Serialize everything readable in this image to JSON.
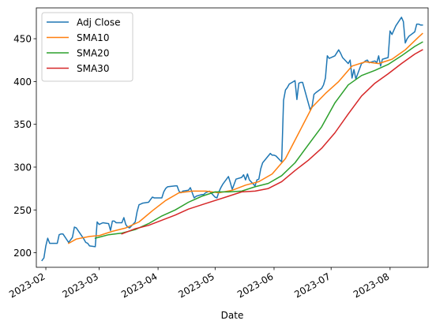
{
  "chart_data": {
    "type": "line",
    "title": "",
    "xlabel": "Date",
    "ylabel": "",
    "xlim": [
      "2023-01-27",
      "2023-08-21"
    ],
    "ylim": [
      183,
      486
    ],
    "grid": false,
    "legend_position": "top-left",
    "x_ticks": [
      {
        "date": "2023-02-01",
        "label": "2023-02"
      },
      {
        "date": "2023-03-01",
        "label": "2023-03"
      },
      {
        "date": "2023-04-01",
        "label": "2023-04"
      },
      {
        "date": "2023-05-01",
        "label": "2023-05"
      },
      {
        "date": "2023-06-01",
        "label": "2023-06"
      },
      {
        "date": "2023-07-01",
        "label": "2023-07"
      },
      {
        "date": "2023-08-01",
        "label": "2023-08"
      }
    ],
    "y_ticks": [
      200,
      250,
      300,
      350,
      400,
      450
    ],
    "series": [
      {
        "name": "Adj Close",
        "color": "#1f77b4",
        "points": [
          [
            "2023-01-30",
            191
          ],
          [
            "2023-01-31",
            194
          ],
          [
            "2023-02-01",
            208
          ],
          [
            "2023-02-02",
            217
          ],
          [
            "2023-02-03",
            211
          ],
          [
            "2023-02-06",
            211
          ],
          [
            "2023-02-07",
            211
          ],
          [
            "2023-02-08",
            221
          ],
          [
            "2023-02-09",
            222
          ],
          [
            "2023-02-10",
            222
          ],
          [
            "2023-02-13",
            212
          ],
          [
            "2023-02-14",
            215
          ],
          [
            "2023-02-15",
            218
          ],
          [
            "2023-02-16",
            230
          ],
          [
            "2023-02-17",
            229
          ],
          [
            "2023-02-21",
            216
          ],
          [
            "2023-02-22",
            212
          ],
          [
            "2023-02-23",
            211
          ],
          [
            "2023-02-24",
            208
          ],
          [
            "2023-02-27",
            207
          ],
          [
            "2023-02-28",
            236
          ],
          [
            "2023-03-01",
            233
          ],
          [
            "2023-03-02",
            234
          ],
          [
            "2023-03-03",
            235
          ],
          [
            "2023-03-06",
            234
          ],
          [
            "2023-03-07",
            226
          ],
          [
            "2023-03-08",
            237
          ],
          [
            "2023-03-09",
            237
          ],
          [
            "2023-03-10",
            235
          ],
          [
            "2023-03-13",
            235
          ],
          [
            "2023-03-14",
            241
          ],
          [
            "2023-03-15",
            233
          ],
          [
            "2023-03-16",
            230
          ],
          [
            "2023-03-17",
            229
          ],
          [
            "2023-03-20",
            236
          ],
          [
            "2023-03-21",
            248
          ],
          [
            "2023-03-22",
            256
          ],
          [
            "2023-03-23",
            257
          ],
          [
            "2023-03-24",
            258
          ],
          [
            "2023-03-27",
            259
          ],
          [
            "2023-03-28",
            262
          ],
          [
            "2023-03-29",
            265
          ],
          [
            "2023-03-30",
            264
          ],
          [
            "2023-03-31",
            264
          ],
          [
            "2023-04-03",
            264
          ],
          [
            "2023-04-04",
            271
          ],
          [
            "2023-04-05",
            275
          ],
          [
            "2023-04-06",
            277
          ],
          [
            "2023-04-10",
            278
          ],
          [
            "2023-04-11",
            278
          ],
          [
            "2023-04-12",
            272
          ],
          [
            "2023-04-13",
            270
          ],
          [
            "2023-04-14",
            272
          ],
          [
            "2023-04-17",
            273
          ],
          [
            "2023-04-18",
            276
          ],
          [
            "2023-04-19",
            270
          ],
          [
            "2023-04-20",
            264
          ],
          [
            "2023-04-21",
            266
          ],
          [
            "2023-04-24",
            268
          ],
          [
            "2023-04-25",
            268
          ],
          [
            "2023-04-26",
            270
          ],
          [
            "2023-04-27",
            271
          ],
          [
            "2023-04-28",
            272
          ],
          [
            "2023-05-01",
            265
          ],
          [
            "2023-05-02",
            264
          ],
          [
            "2023-05-03",
            271
          ],
          [
            "2023-05-04",
            276
          ],
          [
            "2023-05-05",
            280
          ],
          [
            "2023-05-08",
            289
          ],
          [
            "2023-05-09",
            282
          ],
          [
            "2023-05-10",
            274
          ],
          [
            "2023-05-11",
            280
          ],
          [
            "2023-05-12",
            286
          ],
          [
            "2023-05-15",
            288
          ],
          [
            "2023-05-16",
            291
          ],
          [
            "2023-05-17",
            285
          ],
          [
            "2023-05-18",
            292
          ],
          [
            "2023-05-19",
            285
          ],
          [
            "2023-05-22",
            278
          ],
          [
            "2023-05-23",
            285
          ],
          [
            "2023-05-24",
            286
          ],
          [
            "2023-05-25",
            298
          ],
          [
            "2023-05-26",
            305
          ],
          [
            "2023-05-30",
            316
          ],
          [
            "2023-05-31",
            314
          ],
          [
            "2023-06-01",
            314
          ],
          [
            "2023-06-02",
            313
          ],
          [
            "2023-06-05",
            306
          ],
          [
            "2023-06-06",
            378
          ],
          [
            "2023-06-07",
            390
          ],
          [
            "2023-06-08",
            393
          ],
          [
            "2023-06-09",
            397
          ],
          [
            "2023-06-12",
            401
          ],
          [
            "2023-06-13",
            379
          ],
          [
            "2023-06-14",
            398
          ],
          [
            "2023-06-15",
            399
          ],
          [
            "2023-06-16",
            399
          ],
          [
            "2023-06-20",
            367
          ],
          [
            "2023-06-21",
            371
          ],
          [
            "2023-06-22",
            385
          ],
          [
            "2023-06-23",
            387
          ],
          [
            "2023-06-26",
            392
          ],
          [
            "2023-06-27",
            396
          ],
          [
            "2023-06-28",
            404
          ],
          [
            "2023-06-29",
            430
          ],
          [
            "2023-06-30",
            427
          ],
          [
            "2023-07-03",
            430
          ],
          [
            "2023-07-05",
            437
          ],
          [
            "2023-07-06",
            433
          ],
          [
            "2023-07-07",
            428
          ],
          [
            "2023-07-10",
            421
          ],
          [
            "2023-07-11",
            425
          ],
          [
            "2023-07-12",
            404
          ],
          [
            "2023-07-13",
            414
          ],
          [
            "2023-07-14",
            403
          ],
          [
            "2023-07-17",
            421
          ],
          [
            "2023-07-18",
            422
          ],
          [
            "2023-07-19",
            424
          ],
          [
            "2023-07-20",
            425
          ],
          [
            "2023-07-21",
            422
          ],
          [
            "2023-07-24",
            424
          ],
          [
            "2023-07-25",
            422
          ],
          [
            "2023-07-26",
            430
          ],
          [
            "2023-07-27",
            418
          ],
          [
            "2023-07-28",
            426
          ],
          [
            "2023-07-31",
            428
          ],
          [
            "2023-08-01",
            459
          ],
          [
            "2023-08-02",
            455
          ],
          [
            "2023-08-03",
            460
          ],
          [
            "2023-08-04",
            465
          ],
          [
            "2023-08-07",
            475
          ],
          [
            "2023-08-08",
            470
          ],
          [
            "2023-08-09",
            445
          ],
          [
            "2023-08-10",
            450
          ],
          [
            "2023-08-11",
            453
          ],
          [
            "2023-08-14",
            458
          ],
          [
            "2023-08-15",
            467
          ],
          [
            "2023-08-16",
            467
          ],
          [
            "2023-08-17",
            466
          ],
          [
            "2023-08-18",
            466
          ]
        ]
      },
      {
        "name": "SMA10",
        "color": "#ff7f0e",
        "points": [
          [
            "2023-02-13",
            211
          ],
          [
            "2023-02-17",
            216
          ],
          [
            "2023-02-24",
            219
          ],
          [
            "2023-03-01",
            220
          ],
          [
            "2023-03-08",
            225
          ],
          [
            "2023-03-15",
            229
          ],
          [
            "2023-03-22",
            236
          ],
          [
            "2023-03-29",
            249
          ],
          [
            "2023-04-05",
            261
          ],
          [
            "2023-04-12",
            270
          ],
          [
            "2023-04-19",
            272
          ],
          [
            "2023-04-26",
            272
          ],
          [
            "2023-05-03",
            270
          ],
          [
            "2023-05-10",
            273
          ],
          [
            "2023-05-17",
            279
          ],
          [
            "2023-05-24",
            283
          ],
          [
            "2023-05-31",
            292
          ],
          [
            "2023-06-07",
            310
          ],
          [
            "2023-06-14",
            340
          ],
          [
            "2023-06-21",
            370
          ],
          [
            "2023-06-28",
            386
          ],
          [
            "2023-07-05",
            400
          ],
          [
            "2023-07-12",
            418
          ],
          [
            "2023-07-19",
            423
          ],
          [
            "2023-07-26",
            421
          ],
          [
            "2023-08-02",
            426
          ],
          [
            "2023-08-09",
            437
          ],
          [
            "2023-08-16",
            452
          ],
          [
            "2023-08-18",
            456
          ]
        ]
      },
      {
        "name": "SMA20",
        "color": "#2ca02c",
        "points": [
          [
            "2023-02-27",
            217
          ],
          [
            "2023-03-06",
            221
          ],
          [
            "2023-03-13",
            223
          ],
          [
            "2023-03-20",
            227
          ],
          [
            "2023-03-27",
            234
          ],
          [
            "2023-04-03",
            243
          ],
          [
            "2023-04-10",
            250
          ],
          [
            "2023-04-17",
            259
          ],
          [
            "2023-04-24",
            266
          ],
          [
            "2023-05-01",
            271
          ],
          [
            "2023-05-08",
            271
          ],
          [
            "2023-05-15",
            272
          ],
          [
            "2023-05-22",
            277
          ],
          [
            "2023-05-29",
            281
          ],
          [
            "2023-06-05",
            290
          ],
          [
            "2023-06-12",
            305
          ],
          [
            "2023-06-19",
            326
          ],
          [
            "2023-06-26",
            347
          ],
          [
            "2023-07-03",
            375
          ],
          [
            "2023-07-10",
            396
          ],
          [
            "2023-07-17",
            407
          ],
          [
            "2023-07-24",
            413
          ],
          [
            "2023-07-31",
            420
          ],
          [
            "2023-08-07",
            430
          ],
          [
            "2023-08-14",
            441
          ],
          [
            "2023-08-18",
            446
          ]
        ]
      },
      {
        "name": "SMA30",
        "color": "#d62728",
        "points": [
          [
            "2023-03-13",
            222
          ],
          [
            "2023-03-20",
            228
          ],
          [
            "2023-03-27",
            232
          ],
          [
            "2023-04-03",
            238
          ],
          [
            "2023-04-10",
            244
          ],
          [
            "2023-04-17",
            251
          ],
          [
            "2023-04-24",
            256
          ],
          [
            "2023-05-01",
            261
          ],
          [
            "2023-05-08",
            266
          ],
          [
            "2023-05-15",
            271
          ],
          [
            "2023-05-22",
            272
          ],
          [
            "2023-05-29",
            275
          ],
          [
            "2023-06-05",
            283
          ],
          [
            "2023-06-12",
            296
          ],
          [
            "2023-06-19",
            308
          ],
          [
            "2023-06-26",
            322
          ],
          [
            "2023-07-03",
            340
          ],
          [
            "2023-07-10",
            362
          ],
          [
            "2023-07-17",
            383
          ],
          [
            "2023-07-24",
            398
          ],
          [
            "2023-07-31",
            409
          ],
          [
            "2023-08-07",
            421
          ],
          [
            "2023-08-14",
            432
          ],
          [
            "2023-08-18",
            437
          ]
        ]
      }
    ]
  }
}
